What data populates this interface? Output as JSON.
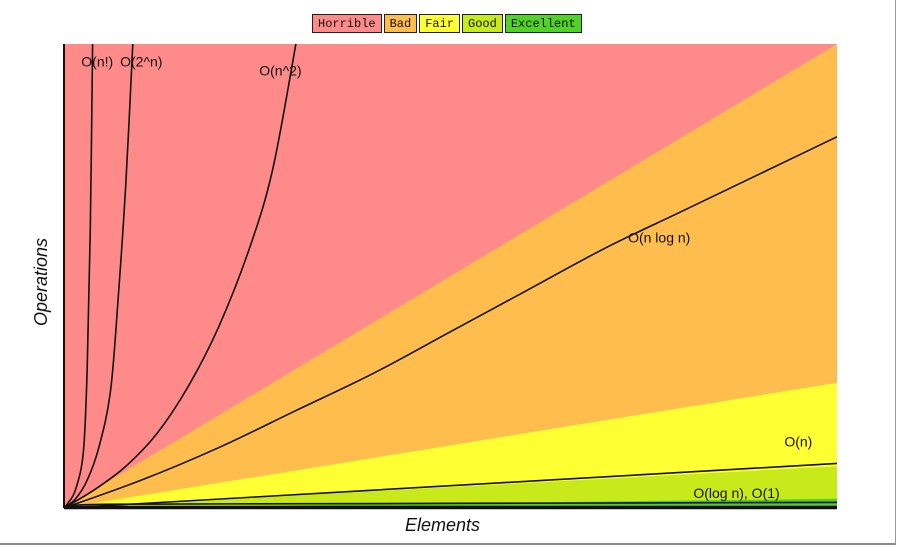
{
  "chart_data": {
    "type": "line",
    "title": "",
    "xlabel": "Elements",
    "ylabel": "Operations",
    "xlim": [
      0,
      100
    ],
    "ylim": [
      0,
      100
    ],
    "legend": {
      "placement": "top-center",
      "entries": [
        {
          "label": "Horrible",
          "color": "#ff8a8a"
        },
        {
          "label": "Bad",
          "color": "#ffbd4d"
        },
        {
          "label": "Fair",
          "color": "#ffff33"
        },
        {
          "label": "Good",
          "color": "#c8ea1a"
        },
        {
          "label": "Excellent",
          "color": "#52d126"
        }
      ]
    },
    "regions": [
      {
        "name": "Horrible",
        "color": "#ff8a8a",
        "boundary": [
          [
            0,
            0
          ],
          [
            100,
            100
          ]
        ]
      },
      {
        "name": "Bad",
        "color": "#ffbd4d",
        "boundary": [
          [
            0,
            0
          ],
          [
            100,
            100
          ]
        ]
      },
      {
        "name": "Fair",
        "color": "#ffff33",
        "boundary": [
          [
            0,
            0
          ],
          [
            100,
            27
          ]
        ]
      },
      {
        "name": "Good",
        "color": "#c8ea1a",
        "boundary": [
          [
            0,
            0
          ],
          [
            100,
            9
          ]
        ]
      },
      {
        "name": "Excellent",
        "color": "#52d126",
        "boundary": [
          [
            0,
            0
          ],
          [
            100,
            2
          ]
        ]
      }
    ],
    "series": [
      {
        "name": "O(n!)",
        "values": [
          [
            0,
            0
          ],
          [
            0.5,
            1
          ],
          [
            1.5,
            4
          ],
          [
            2.5,
            12
          ],
          [
            3,
            30
          ],
          [
            3.4,
            60
          ],
          [
            3.7,
            100
          ]
        ]
      },
      {
        "name": "O(2^n)",
        "values": [
          [
            0,
            0
          ],
          [
            1.5,
            2
          ],
          [
            3,
            6
          ],
          [
            4.5,
            13
          ],
          [
            6,
            25
          ],
          [
            7,
            45
          ],
          [
            8,
            70
          ],
          [
            8.9,
            100
          ]
        ]
      },
      {
        "name": "O(n^2)",
        "values": [
          [
            0,
            0
          ],
          [
            4,
            4
          ],
          [
            8,
            9
          ],
          [
            12,
            16
          ],
          [
            16,
            26
          ],
          [
            20,
            39
          ],
          [
            24,
            56
          ],
          [
            27,
            73
          ],
          [
            30,
            100
          ]
        ]
      },
      {
        "name": "O(n log n)",
        "values": [
          [
            0,
            0
          ],
          [
            10,
            6
          ],
          [
            20,
            13
          ],
          [
            30,
            21
          ],
          [
            40,
            29
          ],
          [
            50,
            38
          ],
          [
            60,
            47
          ],
          [
            70,
            56
          ],
          [
            80,
            64
          ],
          [
            90,
            72
          ],
          [
            100,
            80
          ]
        ]
      },
      {
        "name": "O(n)",
        "values": [
          [
            0,
            0
          ],
          [
            25,
            2.4
          ],
          [
            50,
            4.8
          ],
          [
            75,
            7.2
          ],
          [
            100,
            9.6
          ]
        ]
      },
      {
        "name": "O(log n)",
        "values": [
          [
            0,
            0.4
          ],
          [
            5,
            0.8
          ],
          [
            25,
            0.9
          ],
          [
            50,
            1
          ],
          [
            75,
            1.1
          ],
          [
            100,
            1.2
          ]
        ]
      },
      {
        "name": "O(1)",
        "values": [
          [
            0,
            0.3
          ],
          [
            100,
            0.3
          ]
        ]
      }
    ],
    "annotations": [
      {
        "text": "O(n!)",
        "x": 4.3,
        "y": 96
      },
      {
        "text": "O(2^n)",
        "x": 10,
        "y": 96
      },
      {
        "text": "O(n^2)",
        "x": 28,
        "y": 94
      },
      {
        "text": "O(n log n)",
        "x": 77,
        "y": 58
      },
      {
        "text": "O(n)",
        "x": 95,
        "y": 14
      },
      {
        "text": "O(log n), O(1)",
        "x": 87,
        "y": 3
      }
    ],
    "grid": false
  }
}
